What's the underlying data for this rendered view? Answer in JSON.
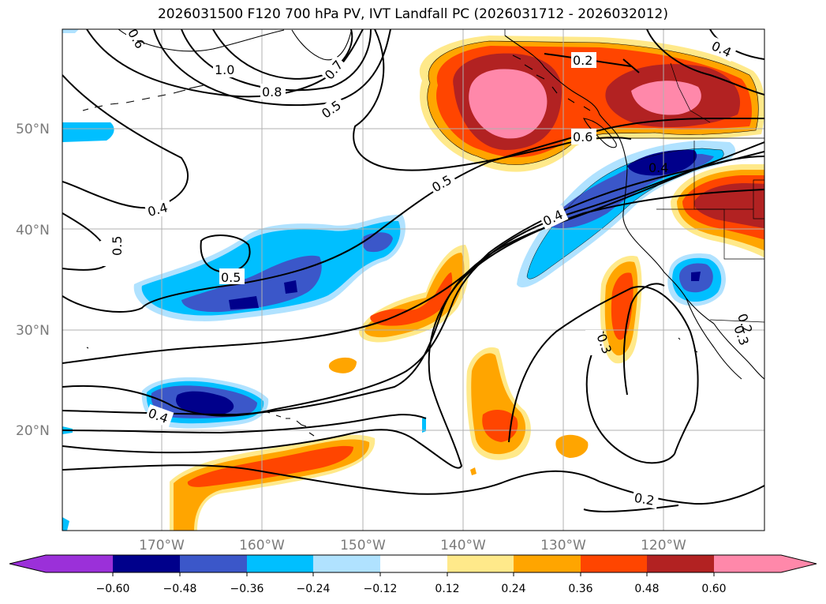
{
  "title": "2026031500 F120 700 hPa PV, IVT Landfall PC (2026031712 - 2026032012)",
  "map": {
    "lon_range": [
      -180,
      -110
    ],
    "lat_range": [
      10,
      60
    ],
    "lon_ticks": [
      "170°W",
      "160°W",
      "150°W",
      "140°W",
      "130°W",
      "120°W"
    ],
    "lat_ticks": [
      "50°N",
      "40°N",
      "30°N",
      "20°N"
    ],
    "contour_labels": [
      "1.0",
      "0.8",
      "0.7",
      "0.6",
      "0.5",
      "0.5",
      "0.4",
      "0.5",
      "0.5",
      "0.2",
      "0.6",
      "0.4",
      "0.4",
      "0.4",
      "0.3",
      "0.2",
      "0.2",
      "0.4",
      "0.3"
    ]
  },
  "colorbar": {
    "labels": [
      "−0.60",
      "−0.48",
      "−0.36",
      "−0.24",
      "−0.12",
      "0.12",
      "0.24",
      "0.36",
      "0.48",
      "0.60"
    ],
    "colors": [
      "#9b30d9",
      "#00008b",
      "#3b57c9",
      "#00bfff",
      "#b0e2ff",
      "#ffffff",
      "#ffe98a",
      "#ffa500",
      "#ff4500",
      "#b22222",
      "#ff88aa",
      "#ff88aa"
    ]
  },
  "palette": {
    "pink": "#ff88aa",
    "darkred": "#b22222",
    "orangered": "#ff4500",
    "orange": "#ffa500",
    "lightyellow": "#ffe98a",
    "navy": "#00008b",
    "royal": "#3b57c9",
    "sky": "#00bfff",
    "paleblue": "#b0e2ff"
  }
}
